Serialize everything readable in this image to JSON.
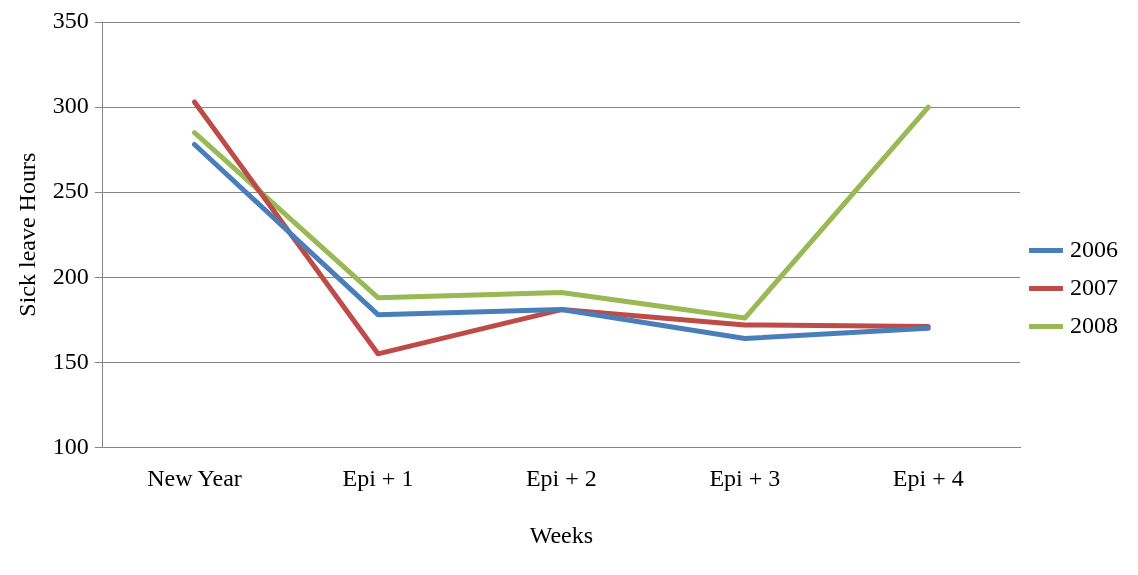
{
  "chart_data": {
    "type": "line",
    "xlabel": "Weeks",
    "ylabel": "Sick leave Hours",
    "categories": [
      "New Year",
      "Epi + 1",
      "Epi + 2",
      "Epi + 3",
      "Epi + 4"
    ],
    "series": [
      {
        "name": "2006",
        "color": "#4a7ebb",
        "values": [
          278,
          178,
          181,
          164,
          170
        ]
      },
      {
        "name": "2007",
        "color": "#be4b48",
        "values": [
          303,
          155,
          181,
          172,
          171
        ]
      },
      {
        "name": "2008",
        "color": "#98b954",
        "values": [
          285,
          188,
          191,
          176,
          300
        ]
      }
    ],
    "ylim": [
      100,
      350
    ],
    "yticks": [
      100,
      150,
      200,
      250,
      300,
      350
    ],
    "grid": "y",
    "legend": "right",
    "marker": "none",
    "line_style": "solid"
  }
}
